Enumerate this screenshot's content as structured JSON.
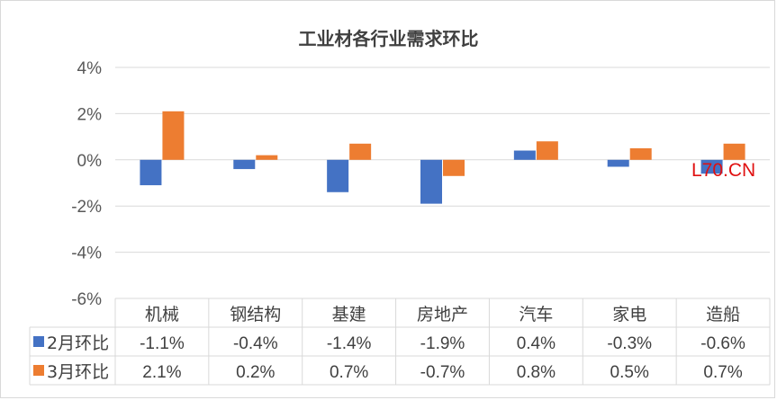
{
  "chart_data": {
    "type": "bar",
    "title": "工业材各行业需求环比",
    "categories": [
      "机械",
      "钢结构",
      "基建",
      "房地产",
      "汽车",
      "家电",
      "造船"
    ],
    "series": [
      {
        "name": "2月环比",
        "color": "#4472C4",
        "values": [
          -1.1,
          -0.4,
          -1.4,
          -1.9,
          0.4,
          -0.3,
          -0.6
        ],
        "labels": [
          "-1.1%",
          "-0.4%",
          "-1.4%",
          "-1.9%",
          "0.4%",
          "-0.3%",
          "-0.6%"
        ]
      },
      {
        "name": "3月环比",
        "color": "#ED7D31",
        "values": [
          2.1,
          0.2,
          0.7,
          -0.7,
          0.8,
          0.5,
          0.7
        ],
        "labels": [
          "2.1%",
          "0.2%",
          "0.7%",
          "-0.7%",
          "0.8%",
          "0.5%",
          "0.7%"
        ]
      }
    ],
    "ylim": [
      -6,
      4
    ],
    "yticks": [
      4,
      2,
      0,
      -2,
      -4,
      -6
    ],
    "ytick_labels": [
      "4%",
      "2%",
      "0%",
      "-2%",
      "-4%",
      "-6%"
    ],
    "grid": true,
    "legend": "data-table"
  },
  "watermark": "L70.CN"
}
